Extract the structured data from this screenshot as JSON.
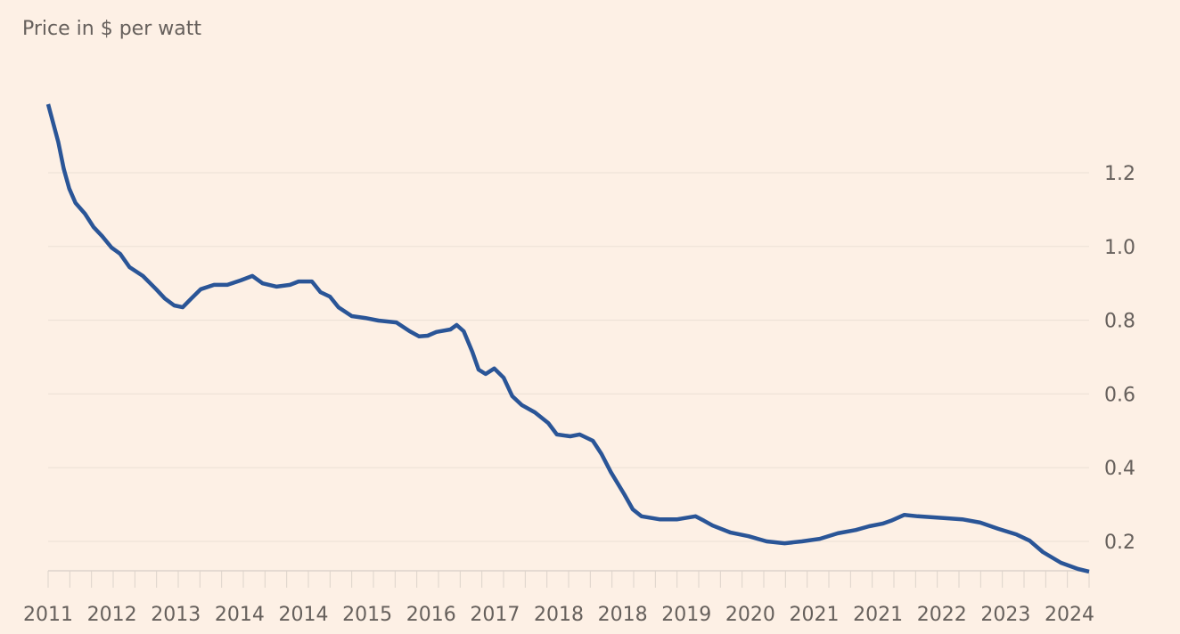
{
  "chart_data": {
    "type": "line",
    "title": "",
    "ylabel": "Price in $ per watt",
    "xlabel": "",
    "ylim": [
      0.12,
      1.4
    ],
    "xlim": [
      2011,
      2024.3
    ],
    "grid": true,
    "y_ticks": [
      "0.2",
      "0.4",
      "0.6",
      "0.8",
      "1.0",
      "1.2"
    ],
    "x_tick_labels": [
      "2011",
      "2012",
      "2013",
      "2014",
      "2014",
      "2015",
      "2016",
      "2017",
      "2018",
      "2018",
      "2019",
      "2020",
      "2021",
      "2021",
      "2022",
      "2023",
      "2024"
    ],
    "colors": {
      "line": "#2a5597",
      "background": "#fdf0e5",
      "grid": "#ecdfd5",
      "text": "#66605c"
    },
    "series": [
      {
        "x": [
          2011.0,
          2011.07,
          2011.13,
          2011.2,
          2011.27,
          2011.35,
          2011.47,
          2011.58,
          2011.69,
          2011.81,
          2011.92,
          2012.04,
          2012.21,
          2012.38,
          2012.49,
          2012.61,
          2012.72,
          2012.83,
          2012.95,
          2013.12,
          2013.29,
          2013.46,
          2013.61,
          2013.74,
          2013.92,
          2014.09,
          2014.2,
          2014.37,
          2014.48,
          2014.6,
          2014.71,
          2014.88,
          2015.05,
          2015.22,
          2015.45,
          2015.62,
          2015.74,
          2015.85,
          2015.96,
          2016.14,
          2016.22,
          2016.31,
          2016.42,
          2016.5,
          2016.59,
          2016.7,
          2016.82,
          2016.93,
          2017.05,
          2017.22,
          2017.39,
          2017.5,
          2017.67,
          2017.79,
          2017.96,
          2018.07,
          2018.19,
          2018.36,
          2018.47,
          2018.58,
          2018.81,
          2019.04,
          2019.27,
          2019.38,
          2019.49,
          2019.72,
          2019.95,
          2020.18,
          2020.41,
          2020.63,
          2020.86,
          2021.09,
          2021.32,
          2021.49,
          2021.66,
          2021.77,
          2021.94,
          2022.11,
          2022.46,
          2022.68,
          2022.91,
          2023.14,
          2023.37,
          2023.54,
          2023.71,
          2023.94,
          2024.16,
          2024.3
        ],
        "y": [
          1.386,
          1.331,
          1.283,
          1.21,
          1.157,
          1.118,
          1.089,
          1.053,
          1.028,
          0.997,
          0.98,
          0.944,
          0.92,
          0.884,
          0.859,
          0.84,
          0.835,
          0.859,
          0.884,
          0.896,
          0.896,
          0.908,
          0.92,
          0.9,
          0.891,
          0.896,
          0.905,
          0.905,
          0.876,
          0.864,
          0.835,
          0.811,
          0.806,
          0.799,
          0.794,
          0.77,
          0.756,
          0.758,
          0.768,
          0.775,
          0.787,
          0.77,
          0.714,
          0.666,
          0.654,
          0.669,
          0.644,
          0.594,
          0.57,
          0.55,
          0.521,
          0.49,
          0.485,
          0.49,
          0.473,
          0.437,
          0.388,
          0.328,
          0.287,
          0.268,
          0.26,
          0.26,
          0.268,
          0.256,
          0.243,
          0.224,
          0.214,
          0.2,
          0.195,
          0.2,
          0.207,
          0.222,
          0.231,
          0.241,
          0.248,
          0.256,
          0.272,
          0.268,
          0.263,
          0.26,
          0.251,
          0.234,
          0.219,
          0.202,
          0.171,
          0.142,
          0.125,
          0.118
        ]
      }
    ]
  }
}
